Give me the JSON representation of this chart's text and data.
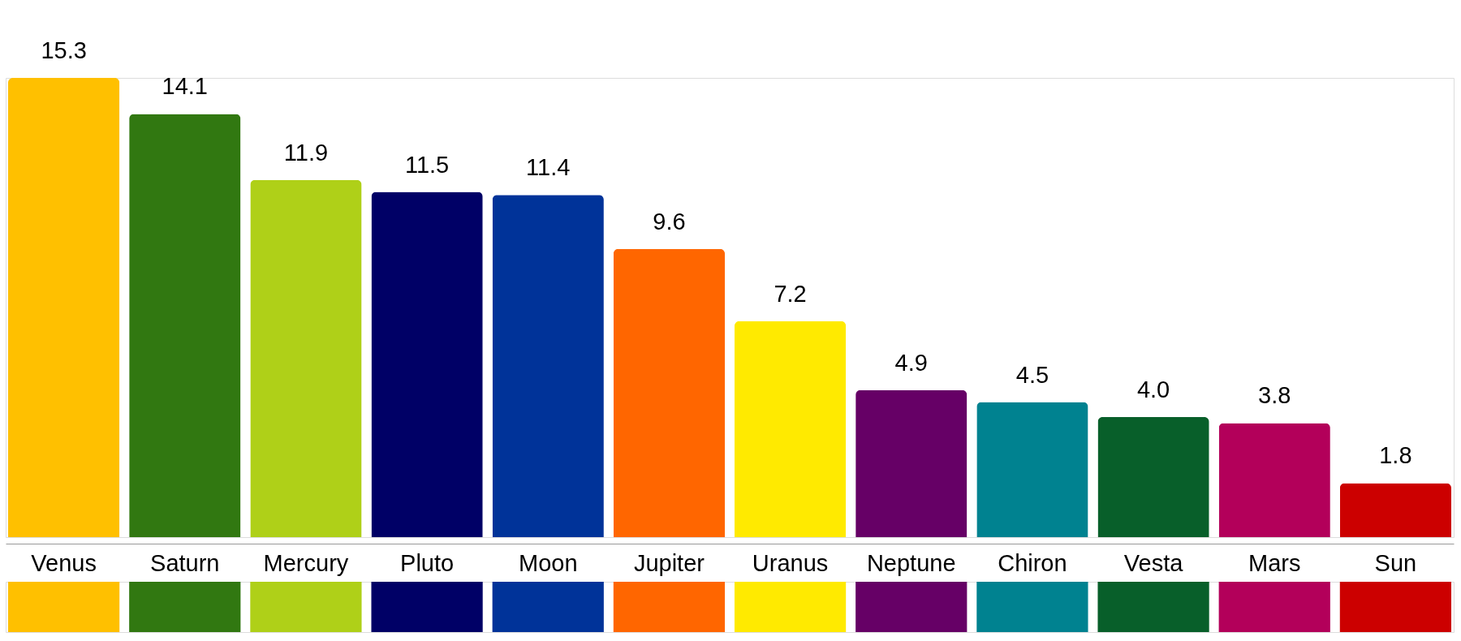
{
  "chart_data": {
    "type": "bar",
    "categories": [
      "Venus",
      "Saturn",
      "Mercury",
      "Pluto",
      "Moon",
      "Jupiter",
      "Uranus",
      "Neptune",
      "Chiron",
      "Vesta",
      "Mars",
      "Sun"
    ],
    "values": [
      15.3,
      14.1,
      11.9,
      11.5,
      11.4,
      9.6,
      7.2,
      4.9,
      4.5,
      4.0,
      3.8,
      1.8
    ],
    "colors": [
      "#ffc000",
      "#317811",
      "#afd018",
      "#000066",
      "#003399",
      "#ff6600",
      "#ffea00",
      "#660066",
      "#008290",
      "#085f2a",
      "#b3005a",
      "#cc0000"
    ],
    "value_labels": [
      "15.3",
      "14.1",
      "11.9",
      "11.5",
      "11.4",
      "9.6",
      "7.2",
      "4.9",
      "4.5",
      "4.0",
      "3.8",
      "1.8"
    ],
    "grid": false
  }
}
